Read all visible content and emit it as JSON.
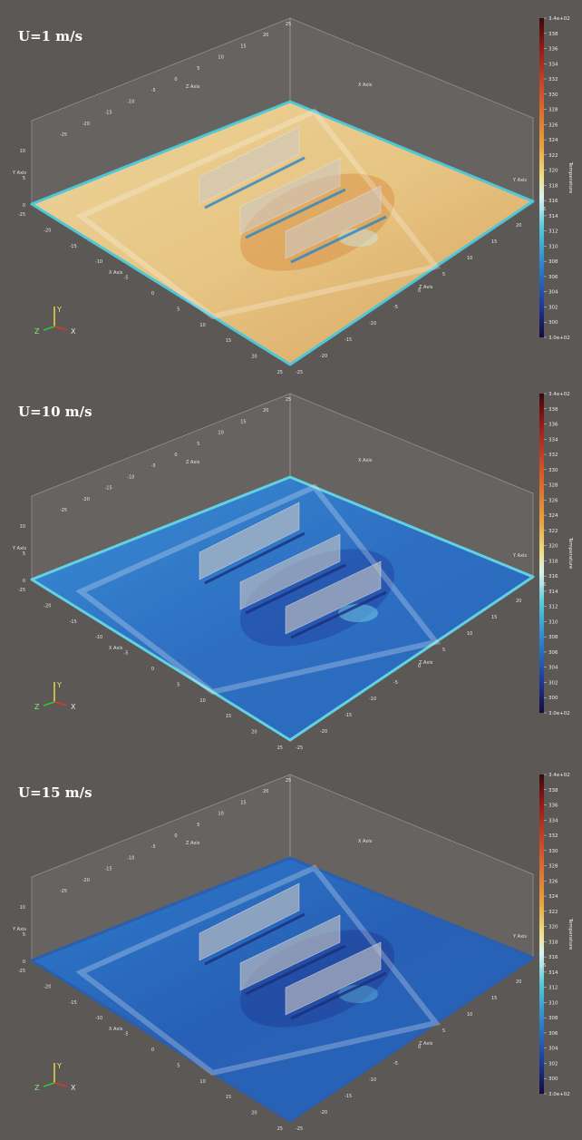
{
  "panels": [
    {
      "title": "U=1 m/s",
      "colorbar": {
        "title": "Temperature",
        "ticks": [
          "3.4e+02",
          "338",
          "336",
          "334",
          "332",
          "330",
          "328",
          "326",
          "324",
          "322",
          "320",
          "318",
          "316",
          "314",
          "312",
          "310",
          "308",
          "306",
          "304",
          "302",
          "300",
          "3.0e+02"
        ]
      },
      "axes": {
        "x_label": "X Axis",
        "y_label": "Y Axis",
        "z_label": "Z Axis",
        "x_ticks": [
          "-25",
          "-20",
          "-15",
          "-10",
          "-5",
          "0",
          "5",
          "10",
          "15",
          "20",
          "25"
        ],
        "z_ticks": [
          "-25",
          "-20",
          "-15",
          "-10",
          "-5",
          "0",
          "5",
          "10",
          "15",
          "20",
          "25"
        ],
        "y_ticks": [
          "0",
          "5",
          "10"
        ]
      },
      "triad": {
        "x": "X",
        "y": "Y",
        "z": "Z"
      }
    },
    {
      "title": "U=10 m/s",
      "colorbar": {
        "title": "Temperature",
        "ticks": [
          "3.4e+02",
          "338",
          "336",
          "334",
          "332",
          "330",
          "328",
          "326",
          "324",
          "322",
          "320",
          "318",
          "316",
          "314",
          "312",
          "310",
          "308",
          "306",
          "304",
          "302",
          "300",
          "3.0e+02"
        ]
      },
      "axes": {
        "x_label": "X Axis",
        "y_label": "Y Axis",
        "z_label": "Z Axis",
        "x_ticks": [
          "-25",
          "-20",
          "-15",
          "-10",
          "-5",
          "0",
          "5",
          "10",
          "15",
          "20",
          "25"
        ],
        "z_ticks": [
          "-25",
          "-20",
          "-15",
          "-10",
          "-5",
          "0",
          "5",
          "10",
          "15",
          "20",
          "25"
        ],
        "y_ticks": [
          "0",
          "5",
          "10"
        ]
      },
      "triad": {
        "x": "X",
        "y": "Y",
        "z": "Z"
      }
    },
    {
      "title": "U=15 m/s",
      "colorbar": {
        "title": "Temperature",
        "ticks": [
          "3.4e+02",
          "338",
          "336",
          "334",
          "332",
          "330",
          "328",
          "326",
          "324",
          "322",
          "320",
          "318",
          "316",
          "314",
          "312",
          "310",
          "308",
          "306",
          "304",
          "302",
          "300",
          "3.0e+02"
        ]
      },
      "axes": {
        "x_label": "X Axis",
        "y_label": "Y Axis",
        "z_label": "Z Axis",
        "x_ticks": [
          "-25",
          "-20",
          "-15",
          "-10",
          "-5",
          "0",
          "5",
          "10",
          "15",
          "20",
          "25"
        ],
        "z_ticks": [
          "-25",
          "-20",
          "-15",
          "-10",
          "-5",
          "0",
          "5",
          "10",
          "15",
          "20",
          "25"
        ],
        "y_ticks": [
          "0",
          "5",
          "10"
        ]
      },
      "triad": {
        "x": "X",
        "y": "Y",
        "z": "Z"
      }
    }
  ]
}
